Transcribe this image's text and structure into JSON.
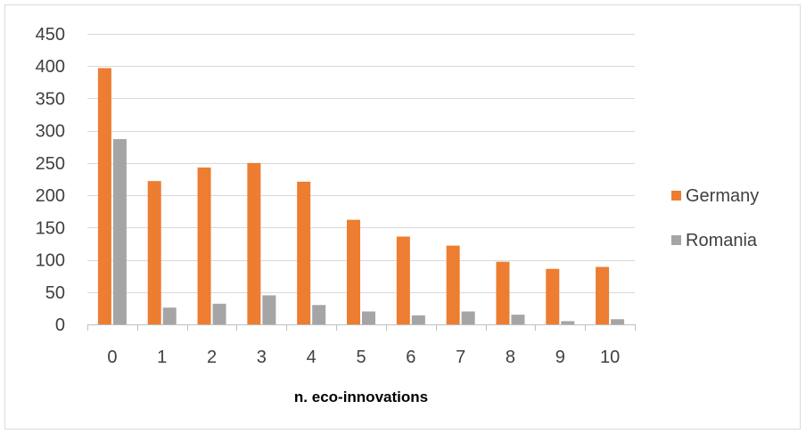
{
  "chart_data": {
    "type": "bar",
    "title": "",
    "xlabel": "n. eco-innovations",
    "ylabel": "",
    "categories": [
      "0",
      "1",
      "2",
      "3",
      "4",
      "5",
      "6",
      "7",
      "8",
      "9",
      "10"
    ],
    "series": [
      {
        "name": "Germany",
        "color": "#ED7D31",
        "values": [
          397,
          222,
          243,
          250,
          221,
          162,
          136,
          122,
          97,
          86,
          89
        ]
      },
      {
        "name": "Romania",
        "color": "#A5A5A5",
        "values": [
          287,
          26,
          32,
          45,
          30,
          20,
          14,
          20,
          15,
          5,
          8
        ]
      }
    ],
    "ylim": [
      0,
      450
    ],
    "yticks": [
      0,
      50,
      100,
      150,
      200,
      250,
      300,
      350,
      400,
      450
    ],
    "grid": true,
    "legend": "right"
  }
}
